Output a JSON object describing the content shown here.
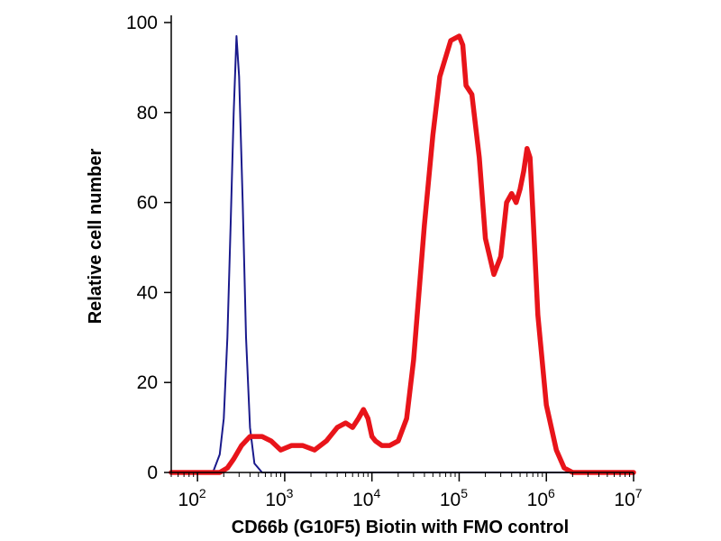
{
  "chart_data": {
    "type": "line",
    "title": "",
    "xlabel": "CD66b (G10F5) Biotin with FMO control",
    "ylabel": "Relative cell number",
    "x_scale": "log10",
    "xlim": [
      50,
      10000000
    ],
    "ylim": [
      0,
      100
    ],
    "grid": false,
    "legend": "none",
    "x_ticks": [
      {
        "value": 100,
        "base": "10",
        "exp": "2"
      },
      {
        "value": 1000,
        "base": "10",
        "exp": "3"
      },
      {
        "value": 10000,
        "base": "10",
        "exp": "4"
      },
      {
        "value": 100000,
        "base": "10",
        "exp": "5"
      },
      {
        "value": 1000000,
        "base": "10",
        "exp": "6"
      },
      {
        "value": 10000000,
        "base": "10",
        "exp": "7"
      }
    ],
    "y_ticks": [
      0,
      20,
      40,
      60,
      80,
      100
    ],
    "series": [
      {
        "color": "#1a1a8c",
        "stroke": "thin",
        "x": [
          50,
          150,
          180,
          200,
          220,
          240,
          260,
          280,
          300,
          330,
          360,
          400,
          450,
          550,
          700,
          10000000
        ],
        "y": [
          0,
          0,
          4,
          12,
          30,
          55,
          80,
          97,
          88,
          60,
          30,
          10,
          2,
          0,
          0,
          0
        ]
      },
      {
        "color": "#e8141a",
        "stroke": "thick",
        "x": [
          50,
          180,
          220,
          260,
          320,
          400,
          550,
          700,
          900,
          1200,
          1600,
          2200,
          3000,
          4000,
          5000,
          6000,
          7000,
          8000,
          9000,
          10000,
          11000,
          13000,
          16000,
          20000,
          25000,
          30000,
          40000,
          50000,
          60000,
          80000,
          100000,
          110000,
          120000,
          140000,
          170000,
          200000,
          250000,
          300000,
          350000,
          400000,
          450000,
          500000,
          550000,
          600000,
          650000,
          700000,
          800000,
          1000000,
          1300000,
          1600000,
          2000000,
          3000000,
          10000000
        ],
        "y": [
          0,
          0,
          1,
          3,
          6,
          8,
          8,
          7,
          5,
          6,
          6,
          5,
          7,
          10,
          11,
          10,
          12,
          14,
          12,
          8,
          7,
          6,
          6,
          7,
          12,
          25,
          55,
          75,
          88,
          96,
          97,
          95,
          86,
          84,
          70,
          52,
          44,
          48,
          60,
          62,
          60,
          63,
          67,
          72,
          70,
          58,
          35,
          15,
          5,
          1,
          0,
          0,
          0
        ]
      }
    ]
  }
}
